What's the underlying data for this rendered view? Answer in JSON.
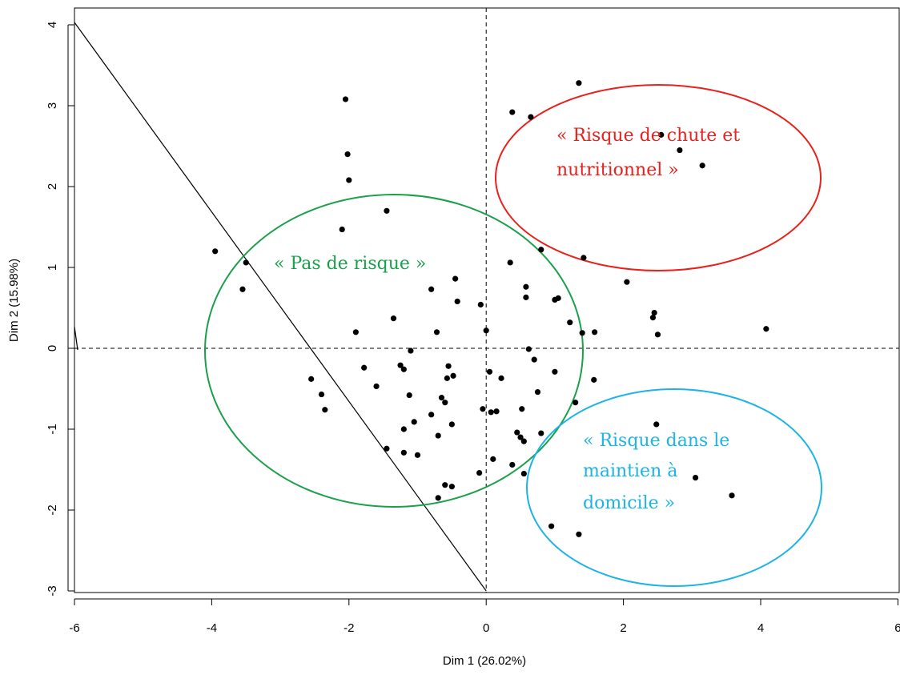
{
  "chart_data": {
    "type": "scatter",
    "title": "",
    "xlabel": "Dim 1 (26.02%)",
    "ylabel": "Dim 2 (15.98%)",
    "xlim": [
      -6,
      6
    ],
    "ylim": [
      -3,
      4.1
    ],
    "xticks": [
      -6,
      -4,
      -2,
      0,
      2,
      4,
      6
    ],
    "yticks": [
      -3,
      -2,
      -1,
      0,
      1,
      2,
      3,
      4
    ],
    "grid": false,
    "reference_lines": [
      "x=0 dashed",
      "y=0 dashed"
    ],
    "points": [
      [
        1.35,
        3.28
      ],
      [
        -2.05,
        3.08
      ],
      [
        0.38,
        2.92
      ],
      [
        0.65,
        2.86
      ],
      [
        2.55,
        2.64
      ],
      [
        2.82,
        2.45
      ],
      [
        3.15,
        2.26
      ],
      [
        -2.02,
        2.4
      ],
      [
        -2.0,
        2.08
      ],
      [
        -1.45,
        1.7
      ],
      [
        -2.1,
        1.47
      ],
      [
        -3.95,
        1.2
      ],
      [
        -3.5,
        1.06
      ],
      [
        -3.55,
        0.73
      ],
      [
        1.42,
        1.12
      ],
      [
        0.8,
        1.22
      ],
      [
        0.35,
        1.06
      ],
      [
        -0.45,
        0.86
      ],
      [
        -0.8,
        0.73
      ],
      [
        -0.42,
        0.58
      ],
      [
        -0.08,
        0.54
      ],
      [
        0.58,
        0.76
      ],
      [
        0.58,
        0.63
      ],
      [
        1.0,
        0.6
      ],
      [
        1.05,
        0.62
      ],
      [
        2.05,
        0.82
      ],
      [
        2.45,
        0.44
      ],
      [
        2.43,
        0.38
      ],
      [
        1.22,
        0.32
      ],
      [
        1.4,
        0.19
      ],
      [
        1.58,
        0.2
      ],
      [
        2.5,
        0.17
      ],
      [
        4.08,
        0.24
      ],
      [
        -1.35,
        0.37
      ],
      [
        -1.9,
        0.2
      ],
      [
        -0.72,
        0.2
      ],
      [
        0.0,
        0.22
      ],
      [
        -1.1,
        -0.03
      ],
      [
        0.62,
        -0.01
      ],
      [
        0.7,
        -0.14
      ],
      [
        -1.78,
        -0.24
      ],
      [
        -1.25,
        -0.21
      ],
      [
        -1.2,
        -0.26
      ],
      [
        -0.55,
        -0.22
      ],
      [
        -2.55,
        -0.38
      ],
      [
        -1.6,
        -0.47
      ],
      [
        -0.57,
        -0.37
      ],
      [
        -0.48,
        -0.34
      ],
      [
        0.05,
        -0.29
      ],
      [
        0.22,
        -0.37
      ],
      [
        1.0,
        -0.29
      ],
      [
        1.57,
        -0.39
      ],
      [
        -2.4,
        -0.57
      ],
      [
        -1.12,
        -0.58
      ],
      [
        -0.65,
        -0.61
      ],
      [
        -0.6,
        -0.67
      ],
      [
        0.75,
        -0.54
      ],
      [
        -2.35,
        -0.76
      ],
      [
        -0.8,
        -0.82
      ],
      [
        -1.05,
        -0.91
      ],
      [
        -0.5,
        -0.94
      ],
      [
        -0.05,
        -0.75
      ],
      [
        0.07,
        -0.79
      ],
      [
        0.15,
        -0.78
      ],
      [
        0.52,
        -0.75
      ],
      [
        1.3,
        -0.67
      ],
      [
        -1.2,
        -1.0
      ],
      [
        -0.7,
        -1.08
      ],
      [
        0.45,
        -1.04
      ],
      [
        0.5,
        -1.1
      ],
      [
        0.55,
        -1.15
      ],
      [
        0.8,
        -1.05
      ],
      [
        2.48,
        -0.94
      ],
      [
        -1.45,
        -1.24
      ],
      [
        -1.2,
        -1.29
      ],
      [
        -1.0,
        -1.32
      ],
      [
        0.1,
        -1.37
      ],
      [
        0.38,
        -1.44
      ],
      [
        -0.6,
        -1.69
      ],
      [
        -0.5,
        -1.71
      ],
      [
        -0.1,
        -1.54
      ],
      [
        0.55,
        -1.55
      ],
      [
        -0.7,
        -1.85
      ],
      [
        3.05,
        -1.6
      ],
      [
        3.58,
        -1.82
      ],
      [
        0.95,
        -2.2
      ],
      [
        1.35,
        -2.3
      ]
    ],
    "colors": {
      "points": "#000000",
      "green_ellipse": "#1aa04a",
      "red_ellipse": "#e8211c",
      "blue_ellipse": "#1db3e6"
    },
    "annotations": {
      "green": "« Pas de risque »",
      "red": [
        "« Risque de chute et",
        "nutritionnel »"
      ],
      "blue": [
        "« Risque dans le",
        "maintien à",
        "domicile »"
      ]
    }
  }
}
